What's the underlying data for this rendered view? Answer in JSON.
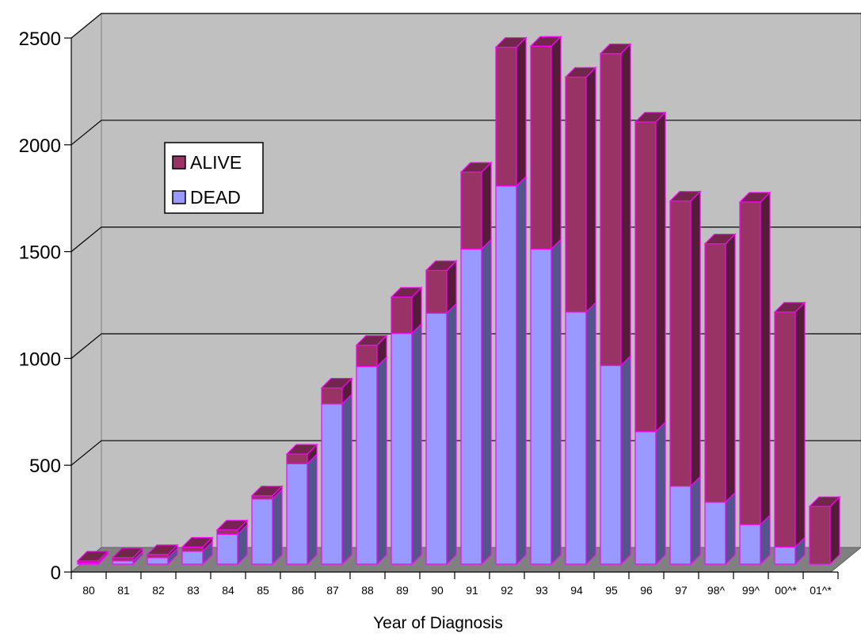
{
  "chart_data": {
    "type": "bar",
    "stacked": true,
    "three_d": true,
    "title": "",
    "xlabel": "Year of Diagnosis",
    "ylabel": "",
    "ylim": [
      0,
      2500
    ],
    "yticks": [
      0,
      500,
      1000,
      1500,
      2000,
      2500
    ],
    "ytick_labels": [
      "0",
      "500",
      "1000",
      "1500",
      "2000",
      "2500"
    ],
    "grid": true,
    "legend_position": "upper-left",
    "categories": [
      "80",
      "81",
      "82",
      "83",
      "84",
      "85",
      "86",
      "87",
      "88",
      "89",
      "90",
      "91",
      "92",
      "93",
      "94",
      "95",
      "96",
      "97",
      "98^",
      "99^",
      "00^*",
      "01^*"
    ],
    "series": [
      {
        "name": "DEAD",
        "color": "#9999ff",
        "values": [
          5,
          15,
          30,
          60,
          140,
          305,
          470,
          750,
          925,
          1080,
          1175,
          1475,
          1770,
          1475,
          1180,
          930,
          620,
          365,
          290,
          185,
          80,
          0
        ]
      },
      {
        "name": "ALIVE",
        "color": "#993366",
        "values": [
          10,
          15,
          15,
          20,
          20,
          15,
          45,
          75,
          100,
          170,
          200,
          360,
          650,
          950,
          1100,
          1460,
          1450,
          1335,
          1210,
          1510,
          1100,
          270
        ]
      }
    ],
    "colors": {
      "wall": "#c0c0c0",
      "floor": "#808080",
      "bar_border": "#ff00ff",
      "grid": "#000000"
    }
  }
}
